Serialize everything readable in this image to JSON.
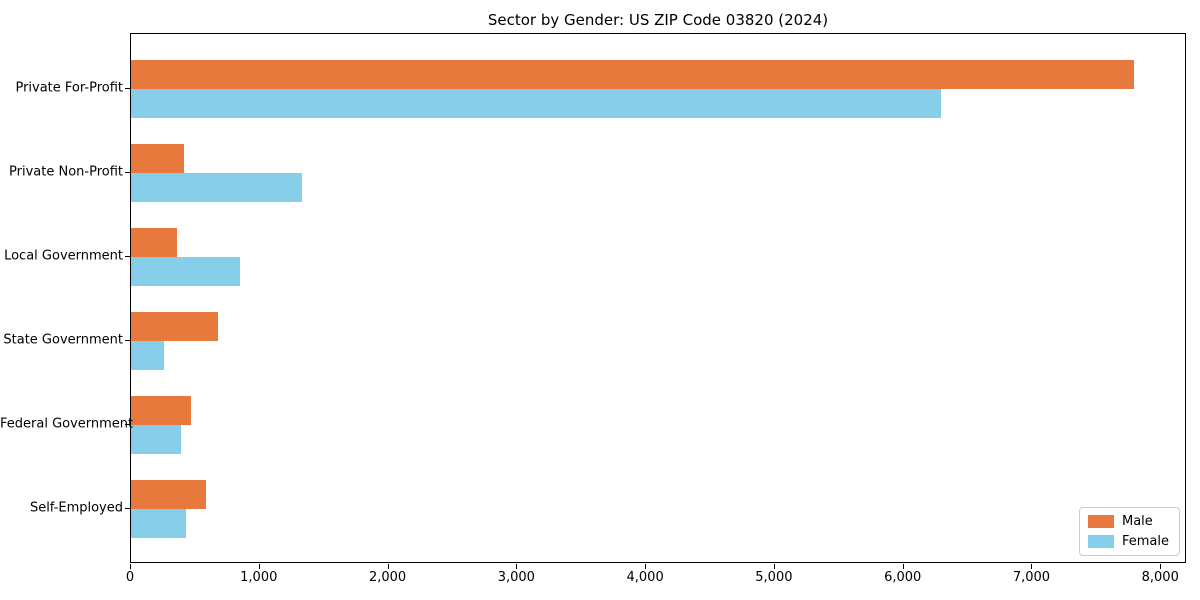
{
  "chart_data": {
    "type": "bar",
    "orientation": "horizontal",
    "title": "Sector by Gender: US ZIP Code 03820 (2024)",
    "categories": [
      "Private For-Profit",
      "Private Non-Profit",
      "Local Government",
      "State Government",
      "Federal Government",
      "Self-Employed"
    ],
    "series": [
      {
        "name": "Male",
        "color": "#e8793d",
        "values": [
          7800,
          410,
          360,
          680,
          470,
          580
        ]
      },
      {
        "name": "Female",
        "color": "#87ceeb",
        "values": [
          6300,
          1330,
          850,
          260,
          390,
          430
        ]
      }
    ],
    "xlabel": "",
    "ylabel": "",
    "xlim": [
      0,
      8200
    ],
    "xticks": [
      0,
      1000,
      2000,
      3000,
      4000,
      5000,
      6000,
      7000,
      8000
    ],
    "xtick_labels": [
      "0",
      "1,000",
      "2,000",
      "3,000",
      "4,000",
      "5,000",
      "6,000",
      "7,000",
      "8,000"
    ],
    "grid": false,
    "legend": {
      "position": "lower right",
      "entries": [
        "Male",
        "Female"
      ]
    }
  }
}
